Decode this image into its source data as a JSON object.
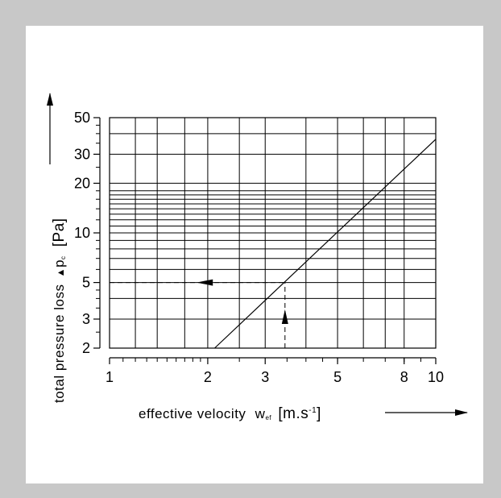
{
  "chart_data": {
    "type": "line",
    "xscale": "log",
    "yscale": "log",
    "xlim": [
      1,
      10
    ],
    "ylim": [
      2,
      50
    ],
    "grid": true,
    "x_ticks": [
      1,
      2,
      3,
      5,
      8,
      10
    ],
    "x_tick_labels": [
      "1",
      "2",
      "3",
      "5",
      "8",
      "10"
    ],
    "y_ticks": [
      2,
      3,
      5,
      10,
      20,
      30,
      50
    ],
    "y_tick_labels": [
      "2",
      "3",
      "5",
      "10",
      "20",
      "30",
      "50"
    ],
    "y_major_grid": [
      2,
      3,
      4,
      5,
      6,
      7,
      8,
      9,
      10,
      11,
      12,
      13,
      14,
      15,
      16,
      17,
      18,
      20,
      30,
      40,
      50
    ],
    "x_major_grid": [
      1,
      1.2,
      1.4,
      1.7,
      2,
      2.5,
      3,
      4,
      5,
      6,
      7,
      8,
      10
    ],
    "x_minor_ticks": [
      1.1,
      1.2,
      1.3,
      1.4,
      1.5,
      1.6,
      1.7,
      1.8,
      1.9,
      2.5,
      3.5,
      4,
      4.5,
      5,
      6,
      7,
      8,
      9
    ],
    "y_minor_ticks": [
      2.5,
      3.5,
      4,
      4.5,
      6,
      7,
      8,
      9,
      12,
      14,
      16,
      18,
      25,
      35,
      40,
      45
    ],
    "xlabel_text": "effective velocity",
    "xlabel_symbol": "w",
    "xlabel_subscript": "ef",
    "xlabel_unit": "[m.s",
    "xlabel_unit_exp": "-1",
    "xlabel_unit_close": "]",
    "ylabel_text": "total pressure loss",
    "ylabel_symbol": "p",
    "ylabel_subscript": "c",
    "ylabel_unit": "[Pa]",
    "series": [
      {
        "x": [
          2.1,
          10
        ],
        "y": [
          2,
          37
        ]
      }
    ],
    "example": {
      "x": 3.45,
      "y": 5
    }
  }
}
